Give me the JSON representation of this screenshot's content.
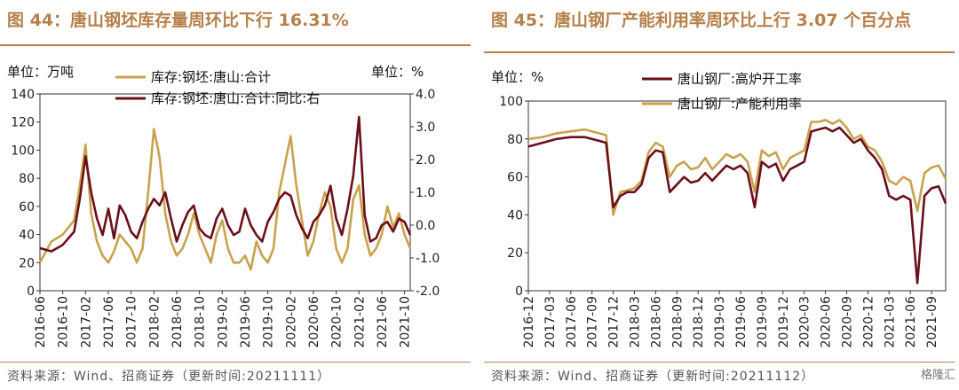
{
  "left": {
    "title": "图 44：唐山钢坯库存量周环比下行 16.31%",
    "source": "资料来源：Wind、招商证券（更新时间:20211111）"
  },
  "right": {
    "title": "图 45：唐山钢厂产能利用率周环比上行 3.07 个百分点",
    "source": "资料来源：Wind、招商证券（更新时间:20211112）"
  },
  "watermark": "格隆汇",
  "chart_data": [
    {
      "type": "line",
      "y_unit_left": "单位：万吨",
      "y_unit_right": "单位：%",
      "ylim_left": [
        0,
        140
      ],
      "ylim_right": [
        -2.0,
        4.0
      ],
      "yticks_left": [
        "0",
        "20",
        "40",
        "60",
        "80",
        "100",
        "120",
        "140"
      ],
      "yticks_right": [
        "-2.0",
        "-1.0",
        "0.0",
        "1.0",
        "2.0",
        "3.0",
        "4.0"
      ],
      "xticks": [
        "2016-06",
        "2016-10",
        "2017-02",
        "2017-06",
        "2017-10",
        "2018-02",
        "2018-06",
        "2018-10",
        "2019-02",
        "2019-06",
        "2019-10",
        "2020-02",
        "2020-06",
        "2020-10",
        "2021-02",
        "2021-06",
        "2021-10"
      ],
      "x_start": "2016-06",
      "x_end": "2021-11",
      "series": [
        {
          "name": "库存:钢坯:唐山:合计",
          "axis": "left",
          "color": "#c9a24e",
          "x": [
            "2016-06",
            "2016-08",
            "2016-10",
            "2016-12",
            "2017-01",
            "2017-02",
            "2017-03",
            "2017-04",
            "2017-05",
            "2017-06",
            "2017-07",
            "2017-08",
            "2017-09",
            "2017-10",
            "2017-11",
            "2017-12",
            "2018-01",
            "2018-02",
            "2018-03",
            "2018-04",
            "2018-05",
            "2018-06",
            "2018-07",
            "2018-08",
            "2018-09",
            "2018-10",
            "2018-11",
            "2018-12",
            "2019-01",
            "2019-02",
            "2019-03",
            "2019-04",
            "2019-05",
            "2019-06",
            "2019-07",
            "2019-08",
            "2019-09",
            "2019-10",
            "2019-11",
            "2019-12",
            "2020-01",
            "2020-02",
            "2020-03",
            "2020-04",
            "2020-05",
            "2020-06",
            "2020-07",
            "2020-08",
            "2020-09",
            "2020-10",
            "2020-11",
            "2020-12",
            "2021-01",
            "2021-02",
            "2021-03",
            "2021-04",
            "2021-05",
            "2021-06",
            "2021-07",
            "2021-08",
            "2021-09",
            "2021-10",
            "2021-11"
          ],
          "values": [
            20,
            35,
            40,
            50,
            75,
            104,
            55,
            35,
            25,
            20,
            28,
            40,
            35,
            30,
            20,
            30,
            70,
            115,
            95,
            55,
            35,
            25,
            30,
            40,
            55,
            40,
            30,
            20,
            40,
            50,
            30,
            20,
            20,
            25,
            15,
            35,
            25,
            20,
            30,
            70,
            90,
            110,
            75,
            50,
            25,
            35,
            55,
            70,
            60,
            30,
            20,
            30,
            65,
            75,
            40,
            25,
            30,
            40,
            60,
            45,
            55,
            40,
            30
          ]
        },
        {
          "name": "库存:钢坯:唐山:合计:同比:右",
          "axis": "right",
          "color": "#6b0f1a",
          "x": [
            "2016-06",
            "2016-08",
            "2016-10",
            "2016-12",
            "2017-01",
            "2017-02",
            "2017-03",
            "2017-04",
            "2017-05",
            "2017-06",
            "2017-07",
            "2017-08",
            "2017-09",
            "2017-10",
            "2017-11",
            "2017-12",
            "2018-01",
            "2018-02",
            "2018-03",
            "2018-04",
            "2018-05",
            "2018-06",
            "2018-07",
            "2018-08",
            "2018-09",
            "2018-10",
            "2018-11",
            "2018-12",
            "2019-01",
            "2019-02",
            "2019-03",
            "2019-04",
            "2019-05",
            "2019-06",
            "2019-07",
            "2019-08",
            "2019-09",
            "2019-10",
            "2019-11",
            "2019-12",
            "2020-01",
            "2020-02",
            "2020-03",
            "2020-04",
            "2020-05",
            "2020-06",
            "2020-07",
            "2020-08",
            "2020-09",
            "2020-10",
            "2020-11",
            "2020-12",
            "2021-01",
            "2021-02",
            "2021-03",
            "2021-04",
            "2021-05",
            "2021-06",
            "2021-07",
            "2021-08",
            "2021-09",
            "2021-10",
            "2021-11"
          ],
          "values": [
            -0.7,
            -0.8,
            -0.6,
            -0.2,
            0.8,
            2.1,
            1.0,
            0.2,
            -0.3,
            0.5,
            -0.4,
            0.6,
            0.3,
            -0.2,
            -0.4,
            0.1,
            0.5,
            0.8,
            0.6,
            1.0,
            0.2,
            -0.5,
            0.0,
            0.4,
            0.6,
            -0.1,
            -0.3,
            -0.4,
            0.2,
            0.5,
            0.0,
            -0.3,
            -0.2,
            0.5,
            0.0,
            -0.3,
            -0.5,
            0.1,
            0.4,
            0.8,
            1.0,
            0.9,
            0.3,
            -0.1,
            -0.4,
            0.1,
            0.3,
            0.6,
            1.2,
            0.2,
            -0.3,
            0.5,
            1.5,
            3.3,
            0.3,
            -0.5,
            -0.4,
            0.0,
            0.1,
            -0.2,
            0.2,
            0.1,
            -0.3
          ]
        }
      ]
    },
    {
      "type": "line",
      "y_unit_left": "单位：%",
      "ylim_left": [
        0,
        100
      ],
      "yticks_left": [
        "0",
        "20",
        "40",
        "60",
        "80",
        "100"
      ],
      "xticks": [
        "2016-12",
        "2017-03",
        "2017-06",
        "2017-09",
        "2017-12",
        "2018-03",
        "2018-06",
        "2018-09",
        "2018-12",
        "2019-03",
        "2019-06",
        "2019-09",
        "2019-12",
        "2020-03",
        "2020-06",
        "2020-09",
        "2020-12",
        "2021-03",
        "2021-06",
        "2021-09"
      ],
      "x_start": "2016-12",
      "x_end": "2021-11",
      "series": [
        {
          "name": "唐山钢厂:高炉开工率",
          "axis": "left",
          "color": "#6b0f1a",
          "x": [
            "2016-12",
            "2017-02",
            "2017-04",
            "2017-06",
            "2017-08",
            "2017-10",
            "2017-11",
            "2017-12",
            "2018-01",
            "2018-02",
            "2018-03",
            "2018-04",
            "2018-05",
            "2018-06",
            "2018-07",
            "2018-08",
            "2018-09",
            "2018-10",
            "2018-11",
            "2018-12",
            "2019-01",
            "2019-02",
            "2019-03",
            "2019-04",
            "2019-05",
            "2019-06",
            "2019-07",
            "2019-08",
            "2019-09",
            "2019-10",
            "2019-11",
            "2019-12",
            "2020-01",
            "2020-02",
            "2020-03",
            "2020-04",
            "2020-05",
            "2020-06",
            "2020-07",
            "2020-08",
            "2020-09",
            "2020-10",
            "2020-11",
            "2020-12",
            "2021-01",
            "2021-02",
            "2021-03",
            "2021-04",
            "2021-05",
            "2021-06",
            "2021-07",
            "2021-08",
            "2021-09",
            "2021-10",
            "2021-11"
          ],
          "values": [
            76,
            78,
            80,
            81,
            81,
            79,
            78,
            44,
            50,
            52,
            52,
            56,
            70,
            74,
            73,
            52,
            56,
            60,
            57,
            58,
            62,
            58,
            62,
            66,
            64,
            66,
            62,
            44,
            68,
            65,
            67,
            58,
            64,
            66,
            68,
            84,
            85,
            86,
            84,
            86,
            82,
            78,
            80,
            74,
            70,
            64,
            50,
            48,
            50,
            48,
            4,
            50,
            54,
            55,
            46
          ]
        },
        {
          "name": "唐山钢厂:产能利用率",
          "axis": "left",
          "color": "#c9a24e",
          "x": [
            "2016-12",
            "2017-02",
            "2017-04",
            "2017-06",
            "2017-08",
            "2017-10",
            "2017-11",
            "2017-12",
            "2018-01",
            "2018-02",
            "2018-03",
            "2018-04",
            "2018-05",
            "2018-06",
            "2018-07",
            "2018-08",
            "2018-09",
            "2018-10",
            "2018-11",
            "2018-12",
            "2019-01",
            "2019-02",
            "2019-03",
            "2019-04",
            "2019-05",
            "2019-06",
            "2019-07",
            "2019-08",
            "2019-09",
            "2019-10",
            "2019-11",
            "2019-12",
            "2020-01",
            "2020-02",
            "2020-03",
            "2020-04",
            "2020-05",
            "2020-06",
            "2020-07",
            "2020-08",
            "2020-09",
            "2020-10",
            "2020-11",
            "2020-12",
            "2021-01",
            "2021-02",
            "2021-03",
            "2021-04",
            "2021-05",
            "2021-06",
            "2021-07",
            "2021-08",
            "2021-09",
            "2021-10",
            "2021-11"
          ],
          "values": [
            80,
            81,
            83,
            84,
            85,
            83,
            82,
            40,
            52,
            53,
            54,
            58,
            73,
            78,
            76,
            60,
            66,
            68,
            64,
            65,
            70,
            64,
            68,
            72,
            70,
            72,
            68,
            52,
            74,
            71,
            73,
            64,
            70,
            72,
            74,
            89,
            89,
            90,
            88,
            90,
            86,
            80,
            82,
            76,
            74,
            68,
            58,
            56,
            60,
            58,
            42,
            62,
            65,
            66,
            59
          ]
        }
      ]
    }
  ]
}
